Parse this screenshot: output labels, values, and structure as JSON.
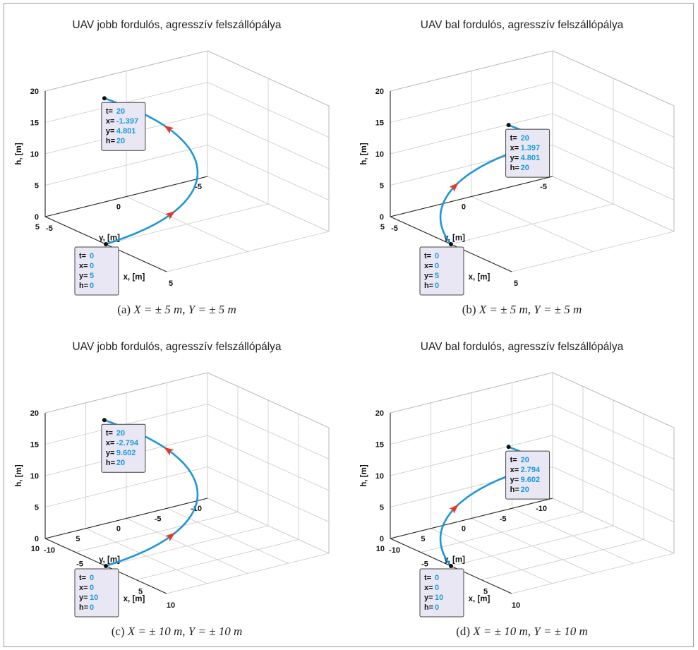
{
  "chart_data": [
    {
      "type": "line",
      "projection": "3d",
      "title": "UAV jobb fordulós, agresszív felszállópálya",
      "caption": {
        "label": "(a)",
        "math": "X = ± 5 m,  Y = ± 5 m"
      },
      "xlabel": "x, [m]",
      "ylabel": "y, [m]",
      "zlabel": "h, [m]",
      "xlim": [
        -5,
        5
      ],
      "ylim": [
        -5,
        5
      ],
      "zlim": [
        0,
        20
      ],
      "xticks": [
        -5,
        0,
        5
      ],
      "yticks": [
        -5,
        0,
        5
      ],
      "zticks": [
        0,
        5,
        10,
        15,
        20
      ],
      "turn": "right",
      "series_color": "#1f96d6",
      "arrow_color": "#e03a2a",
      "datatips": [
        {
          "rows": [
            {
              "k": "t=",
              "v": "20"
            },
            {
              "k": "x=",
              "v": "-1.397"
            },
            {
              "k": "y=",
              "v": "4.801"
            },
            {
              "k": "h=",
              "v": "20"
            }
          ]
        },
        {
          "rows": [
            {
              "k": "t=",
              "v": "0"
            },
            {
              "k": "x=",
              "v": "0"
            },
            {
              "k": "y=",
              "v": "5"
            },
            {
              "k": "h=",
              "v": "0"
            }
          ]
        }
      ]
    },
    {
      "type": "line",
      "projection": "3d",
      "title": "UAV bal fordulós, agresszív felszállópálya",
      "caption": {
        "label": "(b)",
        "math": "X = ± 5 m,  Y = ± 5 m"
      },
      "xlabel": "x, [m]",
      "ylabel": "y, [m]",
      "zlabel": "h, [m]",
      "xlim": [
        -5,
        5
      ],
      "ylim": [
        -5,
        5
      ],
      "zlim": [
        0,
        20
      ],
      "xticks": [
        -5,
        0,
        5
      ],
      "yticks": [
        -5,
        0,
        5
      ],
      "zticks": [
        0,
        5,
        10,
        15,
        20
      ],
      "turn": "left",
      "series_color": "#1f96d6",
      "arrow_color": "#e03a2a",
      "datatips": [
        {
          "rows": [
            {
              "k": "t=",
              "v": "20"
            },
            {
              "k": "x=",
              "v": "1.397"
            },
            {
              "k": "y=",
              "v": "4.801"
            },
            {
              "k": "h=",
              "v": "20"
            }
          ]
        },
        {
          "rows": [
            {
              "k": "t=",
              "v": "0"
            },
            {
              "k": "x=",
              "v": "0"
            },
            {
              "k": "y=",
              "v": "5"
            },
            {
              "k": "h=",
              "v": "0"
            }
          ]
        }
      ]
    },
    {
      "type": "line",
      "projection": "3d",
      "title": "UAV jobb fordulós, agresszív felszállópálya",
      "caption": {
        "label": "(c)",
        "math": "X = ± 10 m,  Y = ± 10 m"
      },
      "xlabel": "x, [m]",
      "ylabel": "y, [m]",
      "zlabel": "h, [m]",
      "xlim": [
        -10,
        10
      ],
      "ylim": [
        -10,
        10
      ],
      "zlim": [
        0,
        20
      ],
      "xticks": [
        -10,
        -5,
        0,
        5,
        10
      ],
      "yticks": [
        -10,
        -5,
        0,
        5,
        10
      ],
      "zticks": [
        0,
        5,
        10,
        15,
        20
      ],
      "turn": "right",
      "series_color": "#1f96d6",
      "arrow_color": "#e03a2a",
      "datatips": [
        {
          "rows": [
            {
              "k": "t=",
              "v": "20"
            },
            {
              "k": "x=",
              "v": "-2.794"
            },
            {
              "k": "y=",
              "v": "9.602"
            },
            {
              "k": "h=",
              "v": "20"
            }
          ]
        },
        {
          "rows": [
            {
              "k": "t=",
              "v": "0"
            },
            {
              "k": "x=",
              "v": "0"
            },
            {
              "k": "y=",
              "v": "10"
            },
            {
              "k": "h=",
              "v": "0"
            }
          ]
        }
      ]
    },
    {
      "type": "line",
      "projection": "3d",
      "title": "UAV bal fordulós, agresszív felszállópálya",
      "caption": {
        "label": "(d)",
        "math": "X = ± 10 m,  Y = ± 10 m"
      },
      "xlabel": "x, [m]",
      "ylabel": "y, [m]",
      "zlabel": "h, [m]",
      "xlim": [
        -10,
        10
      ],
      "ylim": [
        -10,
        10
      ],
      "zlim": [
        0,
        20
      ],
      "xticks": [
        -10,
        -5,
        0,
        5,
        10
      ],
      "yticks": [
        -10,
        -5,
        0,
        5,
        10
      ],
      "zticks": [
        0,
        5,
        10,
        15,
        20
      ],
      "turn": "left",
      "series_color": "#1f96d6",
      "arrow_color": "#e03a2a",
      "datatips": [
        {
          "rows": [
            {
              "k": "t=",
              "v": "20"
            },
            {
              "k": "x=",
              "v": "2.794"
            },
            {
              "k": "y=",
              "v": "9.602"
            },
            {
              "k": "h=",
              "v": "20"
            }
          ]
        },
        {
          "rows": [
            {
              "k": "t=",
              "v": "0"
            },
            {
              "k": "x=",
              "v": "0"
            },
            {
              "k": "y=",
              "v": "10"
            },
            {
              "k": "h=",
              "v": "0"
            }
          ]
        }
      ]
    }
  ]
}
